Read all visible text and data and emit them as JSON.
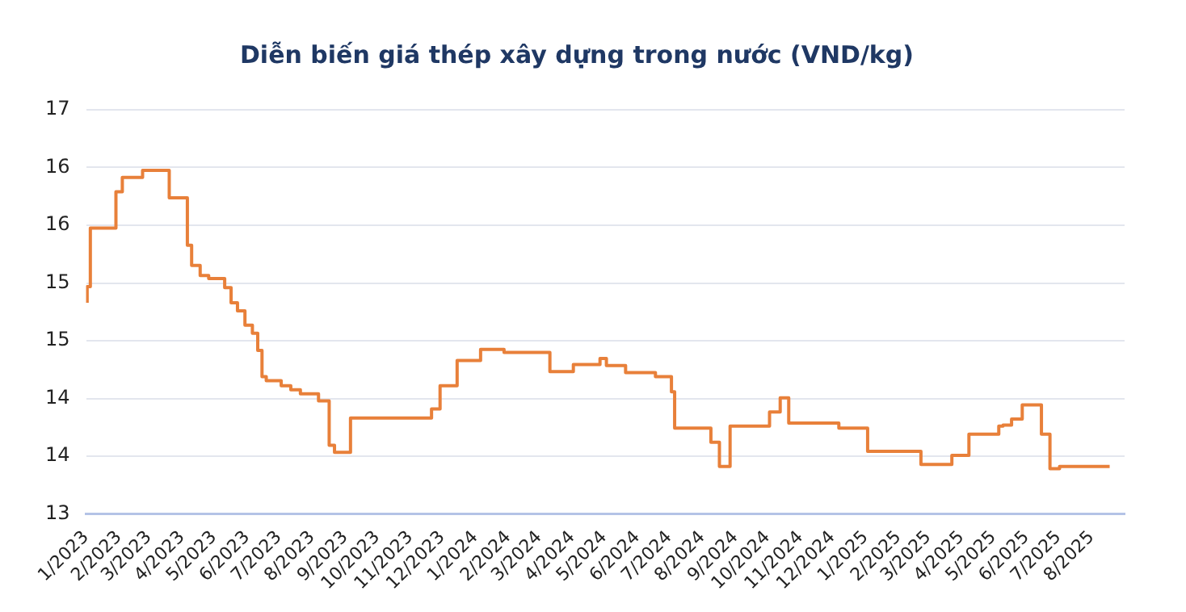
{
  "chart_data": {
    "type": "step",
    "title": "Diễn biến giá thép xây dựng trong nước (VND/kg)",
    "x": [
      "2023-01-02",
      "2023-01-05",
      "2023-01-29",
      "2023-02-04",
      "2023-02-23",
      "2023-03-20",
      "2023-04-06",
      "2023-04-10",
      "2023-04-18",
      "2023-04-26",
      "2023-05-11",
      "2023-05-17",
      "2023-05-23",
      "2023-05-30",
      "2023-06-06",
      "2023-06-11",
      "2023-06-15",
      "2023-06-19",
      "2023-07-03",
      "2023-07-12",
      "2023-07-21",
      "2023-08-07",
      "2023-08-17",
      "2023-08-22",
      "2023-09-06",
      "2023-11-21",
      "2023-11-29",
      "2023-12-15",
      "2024-01-06",
      "2024-01-28",
      "2024-03-11",
      "2024-04-02",
      "2024-04-27",
      "2024-05-03",
      "2024-05-21",
      "2024-06-18",
      "2024-07-03",
      "2024-07-06",
      "2024-08-09",
      "2024-08-17",
      "2024-08-27",
      "2024-10-03",
      "2024-10-13",
      "2024-10-21",
      "2024-12-07",
      "2025-01-03",
      "2025-02-22",
      "2025-03-23",
      "2025-04-08",
      "2025-05-06",
      "2025-05-10",
      "2025-05-18",
      "2025-05-28",
      "2025-06-15",
      "2025-06-23",
      "2025-07-02",
      "2025-08-18"
    ],
    "series": [
      {
        "color": "#e8803a",
        "values": [
          15.09,
          15.25,
          15.83,
          16.19,
          16.33,
          16.4,
          16.13,
          15.66,
          15.46,
          15.36,
          15.33,
          15.24,
          15.09,
          15.01,
          14.87,
          14.79,
          14.62,
          14.36,
          14.32,
          14.27,
          14.23,
          14.19,
          14.12,
          13.68,
          13.61,
          13.95,
          14.04,
          14.27,
          14.52,
          14.63,
          14.6,
          14.41,
          14.48,
          14.54,
          14.47,
          14.4,
          14.36,
          14.21,
          13.85,
          13.71,
          13.47,
          13.87,
          14.01,
          14.15,
          13.9,
          13.85,
          13.62,
          13.49,
          13.58,
          13.79,
          13.87,
          13.88,
          13.94,
          14.08,
          13.79,
          13.45,
          13.47
        ]
      }
    ],
    "xlim": [
      "2023-01",
      "2025-09"
    ],
    "xticks": [
      {
        "value": "2023-01",
        "label": "1/2023"
      },
      {
        "value": "2023-02",
        "label": "2/2023"
      },
      {
        "value": "2023-03",
        "label": "3/2023"
      },
      {
        "value": "2023-04",
        "label": "4/2023"
      },
      {
        "value": "2023-05",
        "label": "5/2023"
      },
      {
        "value": "2023-06",
        "label": "6/2023"
      },
      {
        "value": "2023-07",
        "label": "7/2023"
      },
      {
        "value": "2023-08",
        "label": "8/2023"
      },
      {
        "value": "2023-09",
        "label": "9/2023"
      },
      {
        "value": "2023-10",
        "label": "10/2023"
      },
      {
        "value": "2023-11",
        "label": "11/2023"
      },
      {
        "value": "2023-12",
        "label": "12/2023"
      },
      {
        "value": "2024-01",
        "label": "1/2024"
      },
      {
        "value": "2024-02",
        "label": "2/2024"
      },
      {
        "value": "2024-03",
        "label": "3/2024"
      },
      {
        "value": "2024-04",
        "label": "4/2024"
      },
      {
        "value": "2024-05",
        "label": "5/2024"
      },
      {
        "value": "2024-06",
        "label": "6/2024"
      },
      {
        "value": "2024-07",
        "label": "7/2024"
      },
      {
        "value": "2024-08",
        "label": "8/2024"
      },
      {
        "value": "2024-09",
        "label": "9/2024"
      },
      {
        "value": "2024-10",
        "label": "10/2024"
      },
      {
        "value": "2024-11",
        "label": "11/2024"
      },
      {
        "value": "2024-12",
        "label": "12/2024"
      },
      {
        "value": "2025-01",
        "label": "1/2025"
      },
      {
        "value": "2025-02",
        "label": "2/2025"
      },
      {
        "value": "2025-03",
        "label": "3/2025"
      },
      {
        "value": "2025-04",
        "label": "4/2025"
      },
      {
        "value": "2025-05",
        "label": "5/2025"
      },
      {
        "value": "2025-06",
        "label": "6/2025"
      },
      {
        "value": "2025-07",
        "label": "7/2025"
      },
      {
        "value": "2025-08",
        "label": "8/2025"
      }
    ],
    "ylim": [
      13,
      17
    ],
    "yticks": [
      13,
      {
        "value": 13.571,
        "label": "14"
      },
      {
        "value": 14.143,
        "label": "14"
      },
      {
        "value": 14.714,
        "label": "15"
      },
      {
        "value": 15.286,
        "label": "15"
      },
      {
        "value": 15.857,
        "label": "16"
      },
      {
        "value": 16.429,
        "label": "16"
      },
      17
    ],
    "grid": "y",
    "legend": false,
    "marker": "none",
    "line_style": "solid"
  }
}
